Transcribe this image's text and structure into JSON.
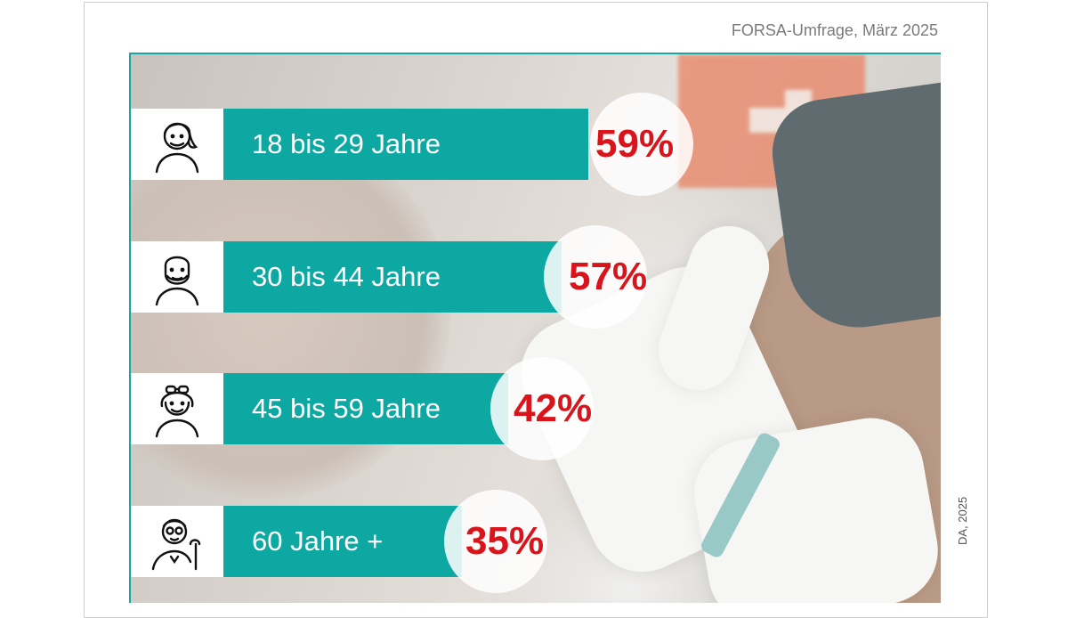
{
  "source": "FORSA-Umfrage, März 2025",
  "credit": "DA, 2025",
  "colors": {
    "bar": "#0ea8a3",
    "percent": "#d9141a",
    "frame": "#16a7a3"
  },
  "chart_data": {
    "type": "bar",
    "orientation": "horizontal",
    "title": "",
    "categories": [
      "18 bis 29 Jahre",
      "30 bis 44 Jahre",
      "45 bis 59 Jahre",
      "60 Jahre +"
    ],
    "values": [
      59,
      57,
      42,
      35
    ],
    "value_labels": [
      "59%",
      "57%",
      "42%",
      "35%"
    ],
    "unit": "%",
    "icons": [
      "young-woman-icon",
      "bearded-man-icon",
      "woman-with-glasses-icon",
      "senior-man-with-cane-icon"
    ],
    "grid": false,
    "legend": "none"
  }
}
